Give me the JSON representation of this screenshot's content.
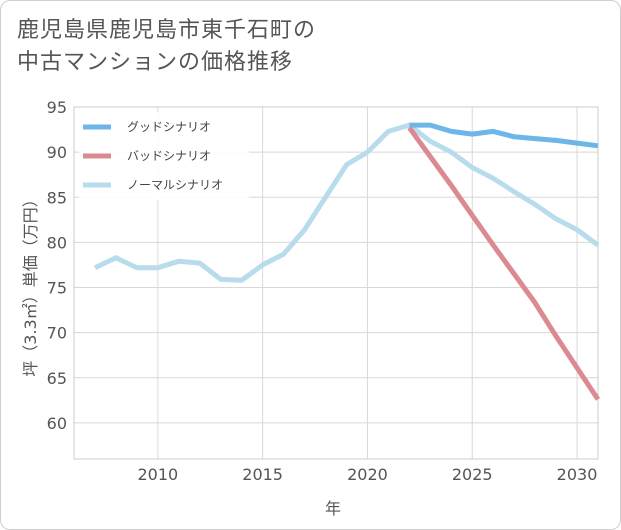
{
  "title_lines": [
    "鹿児島県鹿児島市東千石町の",
    "中古マンションの価格推移"
  ],
  "chart_data": {
    "type": "line",
    "title": "鹿児島県鹿児島市東千石町の中古マンションの価格推移",
    "xlabel": "年",
    "ylabel": "坪（3.3㎡）単価（万円）",
    "xlim": [
      2006,
      2031
    ],
    "ylim": [
      56,
      95
    ],
    "xticks": [
      2010,
      2015,
      2020,
      2025,
      2030
    ],
    "yticks": [
      60,
      65,
      70,
      75,
      80,
      85,
      90,
      95
    ],
    "grid": true,
    "legend_position": "top-left",
    "series": [
      {
        "name": "グッドシナリオ",
        "color": "#6cb6e8",
        "x": [
          2022,
          2023,
          2024,
          2025,
          2026,
          2027,
          2028,
          2029,
          2030,
          2031
        ],
        "values": [
          93.0,
          93.0,
          92.3,
          92.0,
          92.3,
          91.7,
          91.5,
          91.3,
          91.0,
          90.7
        ]
      },
      {
        "name": "バッドシナリオ",
        "color": "#dc8a92",
        "x": [
          2022,
          2023,
          2024,
          2025,
          2026,
          2027,
          2028,
          2029,
          2030,
          2031
        ],
        "values": [
          92.7,
          89.5,
          86.3,
          83.0,
          79.7,
          76.5,
          73.3,
          69.6,
          66.1,
          62.6
        ]
      },
      {
        "name": "ノーマルシナリオ",
        "color": "#b9dcec",
        "x": [
          2007,
          2008,
          2009,
          2010,
          2011,
          2012,
          2013,
          2014,
          2015,
          2016,
          2017,
          2018,
          2019,
          2020,
          2021,
          2022,
          2023,
          2024,
          2025,
          2026,
          2027,
          2028,
          2029,
          2030,
          2031
        ],
        "values": [
          77.2,
          78.3,
          77.2,
          77.2,
          77.9,
          77.7,
          75.9,
          75.8,
          77.5,
          78.7,
          81.4,
          85.0,
          88.6,
          90.0,
          92.3,
          93.0,
          91.2,
          90.0,
          88.3,
          87.1,
          85.6,
          84.2,
          82.6,
          81.4,
          79.7
        ]
      }
    ]
  }
}
